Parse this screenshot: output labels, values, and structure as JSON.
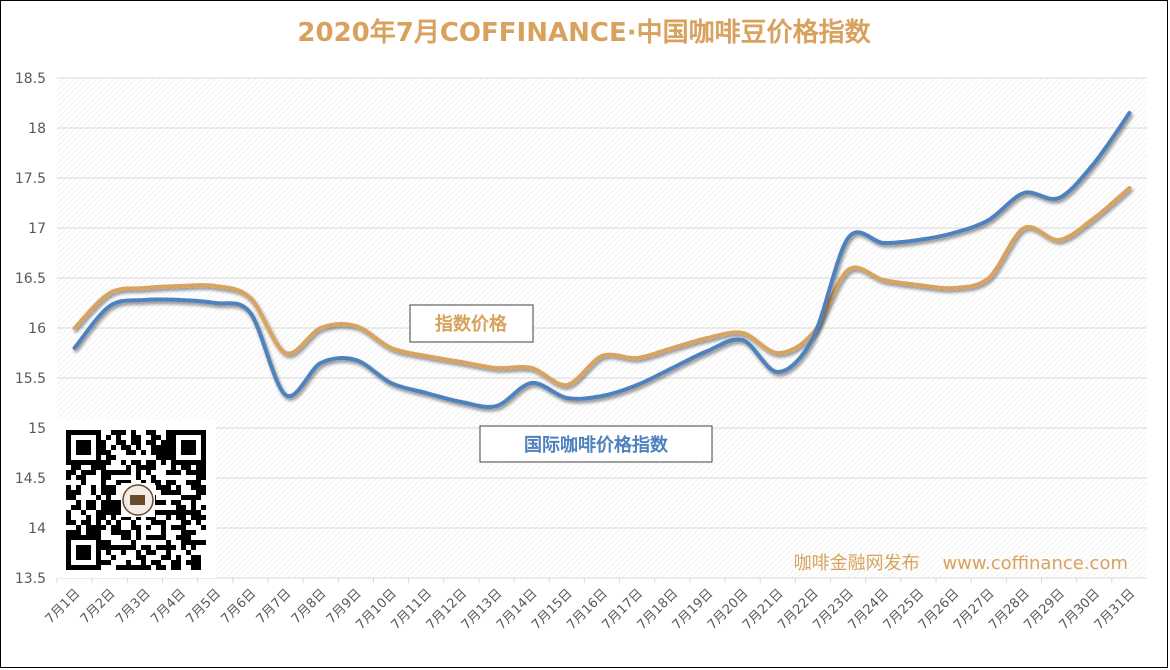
{
  "chart_data": {
    "type": "line",
    "title": "2020年7月COFFINANCE·中国咖啡豆价格指数",
    "categories": [
      "7月1日",
      "7月2日",
      "7月3日",
      "7月4日",
      "7月5日",
      "7月6日",
      "7月7日",
      "7月8日",
      "7月9日",
      "7月10日",
      "7月11日",
      "7月12日",
      "7月13日",
      "7月14日",
      "7月15日",
      "7月16日",
      "7月17日",
      "7月18日",
      "7月19日",
      "7月20日",
      "7月21日",
      "7月22日",
      "7月23日",
      "7月24日",
      "7月25日",
      "7月26日",
      "7月27日",
      "7月28日",
      "7月29日",
      "7月30日",
      "7月31日"
    ],
    "series": [
      {
        "name": "指数价格",
        "color": "#D8A25E",
        "values": [
          16.0,
          16.35,
          16.4,
          16.42,
          16.42,
          16.3,
          15.75,
          16.0,
          16.02,
          15.8,
          15.72,
          15.66,
          15.6,
          15.6,
          15.43,
          15.72,
          15.7,
          15.8,
          15.9,
          15.95,
          15.75,
          15.95,
          16.58,
          16.48,
          16.43,
          16.4,
          16.5,
          17.0,
          16.88,
          17.1,
          17.4
        ]
      },
      {
        "name": "国际咖啡价格指数",
        "color": "#4F81BD",
        "values": [
          15.8,
          16.22,
          16.28,
          16.28,
          16.25,
          16.15,
          15.33,
          15.65,
          15.68,
          15.45,
          15.35,
          15.26,
          15.22,
          15.45,
          15.3,
          15.32,
          15.43,
          15.6,
          15.77,
          15.88,
          15.56,
          15.9,
          16.9,
          16.85,
          16.88,
          16.95,
          17.08,
          17.35,
          17.3,
          17.65,
          18.15
        ]
      }
    ],
    "ylim": [
      13.5,
      18.5
    ],
    "yticks": [
      "13.5",
      "14",
      "14.5",
      "15",
      "15.5",
      "16",
      "16.5",
      "17",
      "17.5",
      "18",
      "18.5"
    ],
    "grid": true,
    "xlabel": "",
    "ylabel": ""
  },
  "labels": {
    "series1_box": "指数价格",
    "series2_box": "国际咖啡价格指数"
  },
  "watermark": "咖啡金融网发布    www.coffinance.com"
}
